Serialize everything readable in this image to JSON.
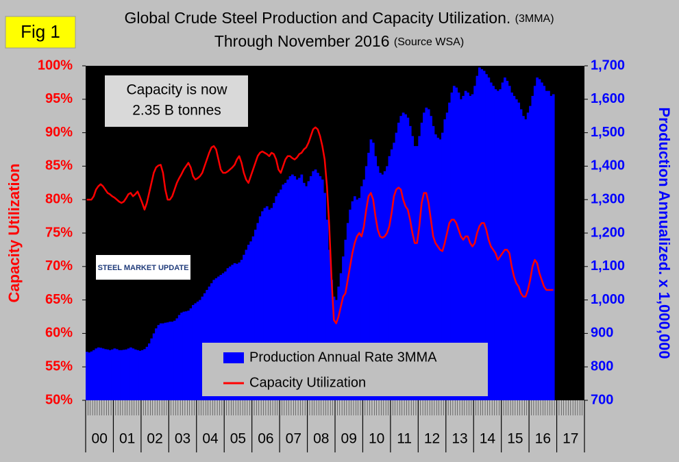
{
  "chart_data": {
    "type": "bar",
    "fig_label": "Fig 1",
    "title": "Global Crude Steel Production and Capacity Utilization.",
    "title_note": "(3MMA)",
    "subtitle": "Through November 2016",
    "subtitle_note": "(Source WSA)",
    "annotation": [
      "Capacity is now",
      "2.35 B tonnes"
    ],
    "logo": "STEEL MARKET UPDATE",
    "y_label": "Capacity Utilization",
    "y2_label": "Production Annualized. x 1,000,000",
    "categories": [
      null,
      null,
      null,
      null,
      null,
      null,
      "00",
      null,
      null,
      null,
      null,
      null,
      null,
      null,
      null,
      null,
      null,
      null,
      "01",
      null,
      null,
      null,
      null,
      null,
      null,
      null,
      null,
      null,
      null,
      null,
      "02",
      null,
      null,
      null,
      null,
      null,
      null,
      null,
      null,
      null,
      null,
      null,
      "03",
      null,
      null,
      null,
      null,
      null,
      null,
      null,
      null,
      null,
      null,
      null,
      "04",
      null,
      null,
      null,
      null,
      null,
      null,
      null,
      null,
      null,
      null,
      null,
      "05",
      null,
      null,
      null,
      null,
      null,
      null,
      null,
      null,
      null,
      null,
      null,
      "06",
      null,
      null,
      null,
      null,
      null,
      null,
      null,
      null,
      null,
      null,
      null,
      "07",
      null,
      null,
      null,
      null,
      null,
      null,
      null,
      null,
      null,
      null,
      null,
      "08",
      null,
      null,
      null,
      null,
      null,
      null,
      null,
      null,
      null,
      null,
      null,
      "09",
      null,
      null,
      null,
      null,
      null,
      null,
      null,
      null,
      null,
      null,
      null,
      "10",
      null,
      null,
      null,
      null,
      null,
      null,
      null,
      null,
      null,
      null,
      null,
      "11",
      null,
      null,
      null,
      null,
      null,
      null,
      null,
      null,
      null,
      null,
      null,
      "12",
      null,
      null,
      null,
      null,
      null,
      null,
      null,
      null,
      null,
      null,
      null,
      "13",
      null,
      null,
      null,
      null,
      null,
      null,
      null,
      null,
      null,
      null,
      null,
      "14",
      null,
      null,
      null,
      null,
      null,
      null,
      null,
      null,
      null,
      null,
      null,
      "15",
      null,
      null,
      null,
      null,
      null,
      null,
      null,
      null,
      null,
      null,
      null,
      "16",
      null,
      null,
      null,
      null,
      null,
      null,
      null,
      null,
      null,
      null,
      null,
      "17",
      null,
      null,
      null,
      null,
      null
    ],
    "series": [
      {
        "name": "Production Annual Rate 3MMA",
        "type": "bar",
        "axis": "y2",
        "color": "#0000ff",
        "values": [
          845,
          843,
          846,
          850,
          855,
          858,
          857,
          855,
          853,
          852,
          850,
          852,
          855,
          853,
          850,
          850,
          851,
          852,
          855,
          858,
          855,
          852,
          850,
          848,
          850,
          853,
          860,
          870,
          885,
          900,
          915,
          925,
          930,
          930,
          932,
          933,
          935,
          935,
          938,
          945,
          955,
          962,
          965,
          966,
          968,
          975,
          985,
          990,
          995,
          1000,
          1010,
          1020,
          1030,
          1040,
          1050,
          1060,
          1065,
          1070,
          1075,
          1080,
          1085,
          1095,
          1100,
          1105,
          1110,
          1108,
          1112,
          1120,
          1135,
          1150,
          1165,
          1175,
          1190,
          1210,
          1230,
          1250,
          1265,
          1275,
          1280,
          1270,
          1275,
          1290,
          1310,
          1320,
          1330,
          1345,
          1350,
          1360,
          1370,
          1375,
          1370,
          1360,
          1365,
          1375,
          1350,
          1340,
          1355,
          1370,
          1385,
          1390,
          1380,
          1370,
          1360,
          1320,
          1240,
          1150,
          1060,
          1010,
          1000,
          1040,
          1080,
          1130,
          1180,
          1230,
          1270,
          1295,
          1310,
          1300,
          1305,
          1340,
          1360,
          1400,
          1440,
          1480,
          1470,
          1430,
          1400,
          1380,
          1375,
          1385,
          1400,
          1430,
          1450,
          1470,
          1500,
          1530,
          1550,
          1560,
          1555,
          1545,
          1520,
          1490,
          1460,
          1460,
          1490,
          1530,
          1560,
          1575,
          1570,
          1550,
          1520,
          1495,
          1485,
          1480,
          1500,
          1540,
          1560,
          1590,
          1620,
          1640,
          1635,
          1620,
          1600,
          1610,
          1625,
          1620,
          1610,
          1615,
          1640,
          1670,
          1695,
          1690,
          1685,
          1675,
          1665,
          1650,
          1640,
          1630,
          1625,
          1630,
          1650,
          1665,
          1655,
          1640,
          1620,
          1610,
          1600,
          1590,
          1570,
          1550,
          1540,
          1560,
          1580,
          1610,
          1640,
          1665,
          1660,
          1650,
          1640,
          1625,
          1625,
          1610,
          1615,
          null,
          null,
          null,
          null,
          null,
          null,
          null,
          null,
          null,
          null,
          null,
          null,
          null
        ]
      },
      {
        "name": "Capacity Utilization",
        "type": "line",
        "axis": "y",
        "color": "#ff0000",
        "values": [
          80,
          80,
          80,
          80.5,
          81.5,
          82,
          82.3,
          82,
          81.5,
          81,
          80.8,
          80.5,
          80.3,
          80,
          79.7,
          79.5,
          79.7,
          80.2,
          80.8,
          81,
          80.5,
          80.8,
          81.2,
          80.4,
          79.5,
          78.5,
          79.5,
          81,
          82.5,
          84,
          84.8,
          85.1,
          85.2,
          84,
          81.5,
          80,
          80,
          80.5,
          81.5,
          82.5,
          83.2,
          83.8,
          84.5,
          85,
          85.5,
          84.8,
          83.5,
          83,
          83.2,
          83.5,
          84,
          85,
          86,
          87,
          87.8,
          88,
          87.5,
          86,
          84.5,
          84,
          84,
          84.2,
          84.5,
          84.8,
          85.2,
          86,
          86.5,
          85.5,
          84,
          83,
          82.5,
          83.5,
          84.5,
          85.5,
          86.5,
          87,
          87.2,
          87,
          86.8,
          86.5,
          87,
          86.8,
          86,
          84.5,
          84,
          85,
          86,
          86.5,
          86.5,
          86.2,
          86,
          86.3,
          86.8,
          87,
          87.5,
          87.8,
          88.5,
          89.5,
          90.5,
          90.8,
          90.5,
          89.5,
          88,
          86,
          82,
          76,
          68,
          62,
          61.5,
          62.5,
          64,
          65.5,
          66,
          68,
          70,
          72,
          73.5,
          74.5,
          75,
          74.5,
          76,
          78.5,
          80.5,
          81,
          80,
          77.5,
          75.5,
          74.5,
          74.3,
          74.5,
          75,
          76,
          78,
          80.5,
          81.5,
          81.8,
          81.5,
          80,
          79,
          78.5,
          77,
          75,
          73.5,
          73.5,
          76,
          79.5,
          81,
          81,
          79.5,
          77,
          74.5,
          73.5,
          73,
          72.5,
          72.3,
          73.5,
          75,
          76.5,
          77,
          77,
          76.5,
          75.5,
          74.5,
          74,
          74.5,
          74.5,
          73.5,
          73,
          73.5,
          75,
          76,
          76.5,
          76.5,
          75.5,
          74,
          73,
          72.5,
          72,
          71,
          71.5,
          72,
          72.5,
          72.5,
          72,
          70,
          68.5,
          67.5,
          67,
          66,
          65.5,
          65.5,
          66.5,
          68,
          70,
          71,
          70.5,
          69,
          68,
          67,
          66.5,
          66.5,
          66.5,
          66.5,
          null,
          null,
          null,
          null,
          null,
          null,
          null,
          null,
          null,
          null,
          null,
          null,
          null
        ]
      }
    ],
    "ylim": [
      50,
      100
    ],
    "yticks": [
      {
        "value": 50,
        "label": "50%"
      },
      {
        "value": 55,
        "label": "55%"
      },
      {
        "value": 60,
        "label": "60%"
      },
      {
        "value": 65,
        "label": "65%"
      },
      {
        "value": 70,
        "label": "70%"
      },
      {
        "value": 75,
        "label": "75%"
      },
      {
        "value": 80,
        "label": "80%"
      },
      {
        "value": 85,
        "label": "85%"
      },
      {
        "value": 90,
        "label": "90%"
      },
      {
        "value": 95,
        "label": "95%"
      },
      {
        "value": 100,
        "label": "100%"
      }
    ],
    "y2lim": [
      700,
      1700
    ],
    "y2ticks": [
      700,
      800,
      900,
      {
        "value": 1000,
        "label": "1,000"
      },
      {
        "value": 1100,
        "label": "1,100"
      },
      {
        "value": 1200,
        "label": "1,200"
      },
      {
        "value": 1300,
        "label": "1,300"
      },
      {
        "value": 1400,
        "label": "1,400"
      },
      {
        "value": 1500,
        "label": "1,500"
      },
      {
        "value": 1600,
        "label": "1,600"
      },
      {
        "value": 1700,
        "label": "1,700"
      }
    ],
    "grid": false,
    "legend": "bottom"
  }
}
